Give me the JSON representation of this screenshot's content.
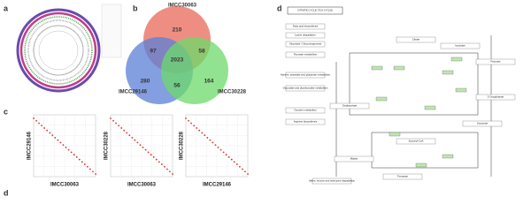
{
  "panel_labels": [
    "a",
    "b",
    "c",
    "d",
    "d"
  ],
  "venn": {
    "sets": [
      {
        "name": "IMCC30063",
        "color": "#e8685a"
      },
      {
        "name": "IMCC29146",
        "color": "#5b7fd6"
      },
      {
        "name": "IMCC30228",
        "color": "#6cd96a"
      }
    ],
    "regions": [
      210,
      97,
      58,
      2023,
      280,
      56,
      164
    ]
  },
  "dotplots": [
    {
      "y_label": "IMCC29146",
      "x_label": "IMCC30063"
    },
    {
      "y_label": "IMCC30228",
      "x_label": "IMCC30063"
    },
    {
      "y_label": "IMCC30228",
      "x_label": "IMCC29146"
    }
  ],
  "pathway": {
    "title": "CITRATE CYCLE (TCA CYCLE)",
    "nodes": [
      "Glycolysis / Gluconeogenesis",
      "Pyruvate",
      "Oxaloacetate",
      "Citrate",
      "Isocitrate",
      "2-Oxoglutarate",
      "Succinyl-CoA",
      "Succinate",
      "Fumarate",
      "Malate",
      "Fatty acid biosynthesis",
      "Lysine degradation",
      "Tyrosine metabolism",
      "Arginine biosynthesis",
      "Pyruvate metabolism",
      "Glyoxylate and dicarboxylate metabolism",
      "Alanine, aspartate and glutamate metabolism",
      "Valine, leucine and isoleucine degradation"
    ]
  }
}
